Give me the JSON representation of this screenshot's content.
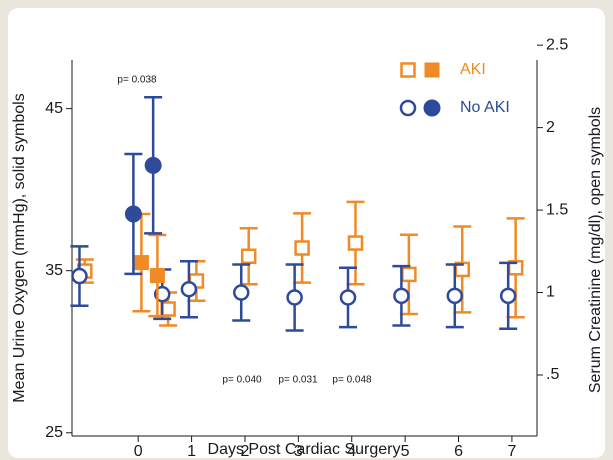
{
  "chart_data": {
    "type": "scatter",
    "xlabel": "Days Post Cardiac Surgery",
    "ylabel": "Mean Urine Oxygen (mmHg), solid symbols",
    "y2label": "Serum Creatinine (mg/dl), open symbols",
    "xlim": [
      -1.24,
      7.47
    ],
    "xticks": [
      0,
      1,
      2,
      3,
      4,
      5,
      6,
      7
    ],
    "ylim": [
      24.8,
      48
    ],
    "yticks": [
      25,
      35,
      45
    ],
    "y2lim": [
      0.13,
      2.41
    ],
    "y2ticks": [
      {
        "value": 0.5,
        "label": ".5"
      },
      1,
      1.5,
      2,
      2.5
    ],
    "legend": "top-right",
    "annotations": [
      "p= 0.038",
      "p= 0.040",
      "p= 0.031",
      "p= 0.048"
    ],
    "series": [
      {
        "name": "AKI",
        "color": "#f08a24",
        "marker": "open-square",
        "axis": "y2",
        "x": [
          -1,
          0.56,
          1.09,
          2.07,
          3.07,
          4.07,
          5.07,
          6.07,
          7.07
        ],
        "values": [
          1.13,
          0.9,
          1.07,
          1.22,
          1.27,
          1.3,
          1.11,
          1.14,
          1.15
        ],
        "errors": [
          0.07,
          0.1,
          0.12,
          0.17,
          0.21,
          0.25,
          0.24,
          0.26,
          0.3
        ]
      },
      {
        "name": "No AKI",
        "color": "#2e4a9a",
        "marker": "open-circle",
        "axis": "y2",
        "x": [
          -1.1,
          0.45,
          0.95,
          1.93,
          2.93,
          3.93,
          4.93,
          5.93,
          6.93
        ],
        "values": [
          1.1,
          0.99,
          1.02,
          1.0,
          0.97,
          0.97,
          0.98,
          0.98,
          0.98
        ],
        "errors": [
          0.18,
          0.15,
          0.17,
          0.17,
          0.2,
          0.18,
          0.18,
          0.19,
          0.2
        ]
      },
      {
        "name": "AKI",
        "color": "#f08a24",
        "marker": "filled-square",
        "axis": "y",
        "x": [
          0.06,
          0.36
        ],
        "values": [
          35.5,
          34.7
        ],
        "errors": [
          3.0,
          2.5
        ]
      },
      {
        "name": "No AKI",
        "color": "#2e4a9a",
        "marker": "filled-circle",
        "axis": "y",
        "x": [
          -0.09,
          0.28
        ],
        "values": [
          38.5,
          41.5
        ],
        "errors": [
          3.7,
          4.2
        ]
      }
    ]
  }
}
